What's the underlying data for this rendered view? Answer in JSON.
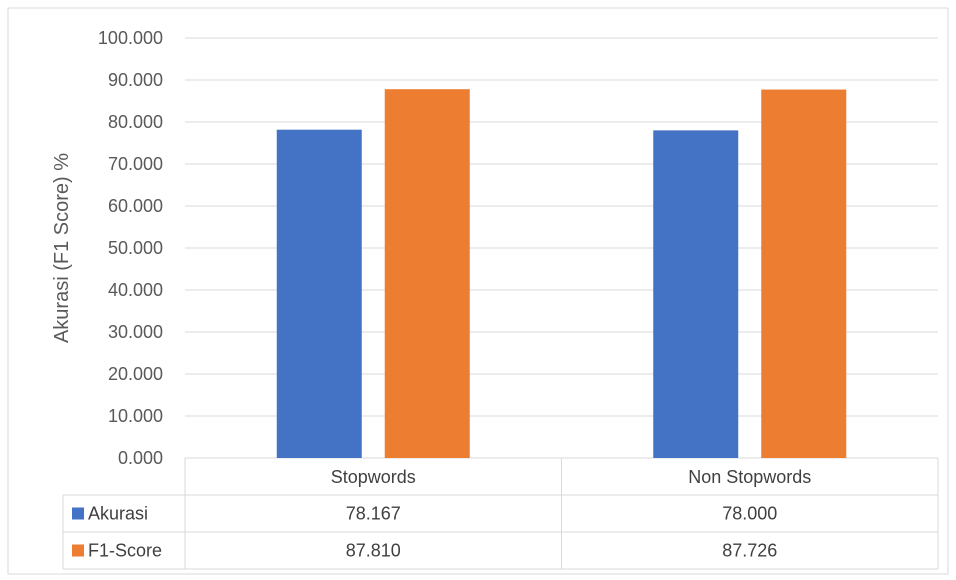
{
  "chart_data": {
    "type": "bar",
    "title": "",
    "ylabel": "Akurasi (F1 Score) %",
    "xlabel": "",
    "ylim": [
      0,
      100
    ],
    "yticks": [
      0,
      10,
      20,
      30,
      40,
      50,
      60,
      70,
      80,
      90,
      100
    ],
    "ytick_labels": [
      "0.000",
      "10.000",
      "20.000",
      "30.000",
      "40.000",
      "50.000",
      "60.000",
      "70.000",
      "80.000",
      "90.000",
      "100.000"
    ],
    "grid": true,
    "legend": "data-table",
    "categories": [
      "Stopwords",
      "Non Stopwords"
    ],
    "series": [
      {
        "name": "Akurasi",
        "color": "#4472C4",
        "values": [
          78.167,
          78.0
        ],
        "labels": [
          "78.167",
          "78.000"
        ]
      },
      {
        "name": "F1-Score",
        "color": "#ED7D31",
        "values": [
          87.81,
          87.726
        ],
        "labels": [
          "87.810",
          "87.726"
        ]
      }
    ]
  }
}
